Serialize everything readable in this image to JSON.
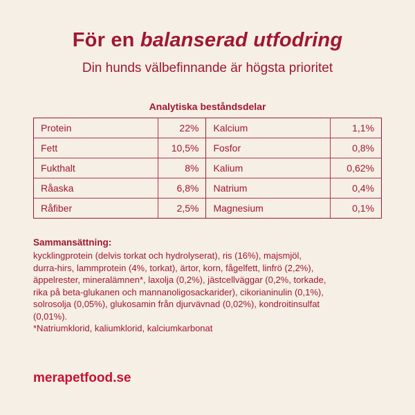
{
  "header": {
    "title_prefix": "För en ",
    "title_emphasis": "balanserad utfodring",
    "subtitle": "Din hunds välbefinnande är högsta prioritet"
  },
  "analysis": {
    "title": "Analytiska beståndsdelar",
    "rows": [
      {
        "left_name": "Protein",
        "left_value": "22%",
        "right_name": "Kalcium",
        "right_value": "1,1%"
      },
      {
        "left_name": "Fett",
        "left_value": "10,5%",
        "right_name": "Fosfor",
        "right_value": "0,8%"
      },
      {
        "left_name": "Fukthalt",
        "left_value": "8%",
        "right_name": "Kalium",
        "right_value": "0,62%"
      },
      {
        "left_name": "Råaska",
        "left_value": "6,8%",
        "right_name": "Natrium",
        "right_value": "0,4%"
      },
      {
        "left_name": "Råfiber",
        "left_value": "2,5%",
        "right_name": "Magnesium",
        "right_value": "0,1%"
      }
    ]
  },
  "composition": {
    "heading": "Sammansättning:",
    "lines": [
      "kycklingprotein (delvis torkat och hydrolyserat), ris (16%), majsmjöl,",
      "durra-hirs, lammprotein (4%, torkat), ärtor, korn, fågelfett, linfrö (2,2%),",
      "äppelrester, mineralämnen*, laxolja (0,2%), jästcellväggar (0,2%, torkade,",
      "rika på beta-glukanen och mannanoligosackarider), cikorianinulin (0,1%),",
      "solrosolja (0,05%), glukosamin från djurvävnad (0,02%), kondroitinsulfat",
      "(0,01%).",
      "*Natriumklorid, kaliumklorid, kalciumkarbonat"
    ]
  },
  "footer": {
    "website": "merapetfood.se"
  },
  "colors": {
    "background": "#f6efe6",
    "primary": "#a0172f",
    "brand": "#c8102e"
  }
}
